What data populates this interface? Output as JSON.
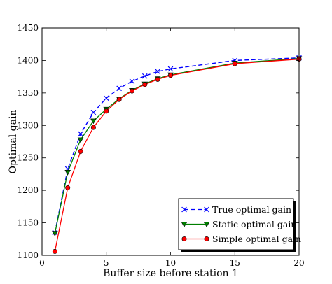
{
  "chart_data": {
    "type": "line",
    "title": "",
    "xlabel": "Buffer size before station 1",
    "ylabel": "Optimal gain",
    "xlim": [
      0,
      20
    ],
    "ylim": [
      1100,
      1450
    ],
    "xticks": [
      0,
      5,
      10,
      15,
      20
    ],
    "yticks": [
      1100,
      1150,
      1200,
      1250,
      1300,
      1350,
      1400,
      1450
    ],
    "grid": false,
    "legend_position": "bottom-right",
    "series": [
      {
        "name": "True optimal gain",
        "color": "#0000ff",
        "line_style": "dashed",
        "marker": "x",
        "x": [
          1,
          2,
          3,
          4,
          5,
          6,
          7,
          8,
          9,
          10,
          15,
          20
        ],
        "y": [
          1135,
          1233,
          1287,
          1320,
          1342,
          1357,
          1368,
          1376,
          1383,
          1387,
          1400,
          1404
        ]
      },
      {
        "name": "Static optimal gain",
        "color": "#007f00",
        "line_style": "solid",
        "marker": "triangle-down",
        "x": [
          1,
          2,
          3,
          4,
          5,
          6,
          7,
          8,
          9,
          10,
          15,
          20
        ],
        "y": [
          1134,
          1228,
          1278,
          1307,
          1325,
          1341,
          1354,
          1364,
          1372,
          1378,
          1396,
          1403
        ]
      },
      {
        "name": "Simple optimal gain",
        "color": "#ff0000",
        "line_style": "solid",
        "marker": "circle",
        "x": [
          1,
          2,
          3,
          4,
          5,
          6,
          7,
          8,
          9,
          10,
          15,
          20
        ],
        "y": [
          1106,
          1204,
          1260,
          1297,
          1322,
          1340,
          1353,
          1363,
          1371,
          1377,
          1395,
          1402
        ]
      }
    ]
  }
}
